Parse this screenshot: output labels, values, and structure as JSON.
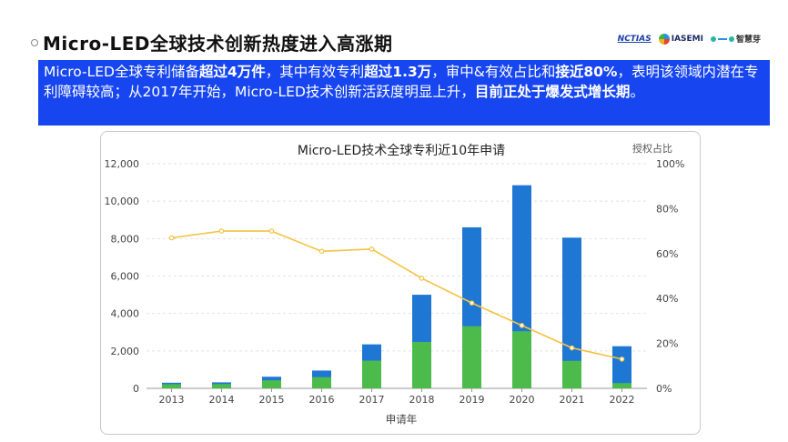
{
  "page": {
    "title": "Micro-LED全球技术创新热度进入高涨期",
    "logos": {
      "first": "NCTIAS",
      "second": "IASEMI",
      "third": "智慧芽"
    }
  },
  "summary": {
    "s1": "Micro-LED全球专利储备",
    "b1": "超过4万件",
    "s2": "，其中有效专利",
    "b2": "超过1.3万",
    "s3": "，审中&有效占比和",
    "b3": "接近80%",
    "s4": "，表明该领域内潜在专利障碍较高；从2017年开始，Micro-LED技术创新活跃度明显上升，",
    "b4": "目前正处于爆发式增长期",
    "s5": "。"
  },
  "chart_data": {
    "type": "bar",
    "title": "Micro-LED技术全球专利近10年申请",
    "xlabel": "申请年",
    "ylabel": "",
    "y2label": "授权占比",
    "categories": [
      "2013",
      "2014",
      "2015",
      "2016",
      "2017",
      "2018",
      "2019",
      "2020",
      "2021",
      "2022"
    ],
    "ylim": [
      0,
      12000
    ],
    "yticks": [
      "0",
      "2,000",
      "4,000",
      "6,000",
      "8,000",
      "10,000",
      "12,000"
    ],
    "y2lim": [
      0,
      100
    ],
    "y2ticks": [
      "0%",
      "20%",
      "40%",
      "60%",
      "80%",
      "100%"
    ],
    "series": [
      {
        "kind": "bar",
        "color": "#1f77d4",
        "values": [
          300,
          320,
          620,
          950,
          2350,
          5000,
          8600,
          10850,
          8050,
          2250
        ]
      },
      {
        "kind": "bar",
        "color": "#4cbb4c",
        "values": [
          220,
          230,
          430,
          600,
          1480,
          2480,
          3320,
          3050,
          1470,
          280
        ]
      },
      {
        "kind": "line",
        "axis": "right",
        "color": "#f5c242",
        "values": [
          67,
          70,
          70,
          61,
          62,
          49,
          38,
          28,
          18,
          13
        ]
      }
    ],
    "grid": true
  }
}
